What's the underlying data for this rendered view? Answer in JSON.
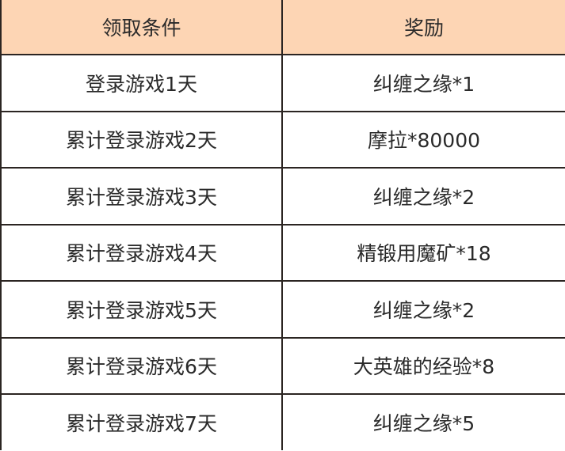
{
  "table": {
    "headers": [
      "领取条件",
      "奖励"
    ],
    "rows": [
      [
        "登录游戏1天",
        "纠缠之缘*1"
      ],
      [
        "累计登录游戏2天",
        "摩拉*80000"
      ],
      [
        "累计登录游戏3天",
        "纠缠之缘*2"
      ],
      [
        "累计登录游戏4天",
        "精锻用魔矿*18"
      ],
      [
        "累计登录游戏5天",
        "纠缠之缘*2"
      ],
      [
        "累计登录游戏6天",
        "大英雄的经验*8"
      ],
      [
        "累计登录游戏7天",
        "纠缠之缘*5"
      ]
    ]
  },
  "colors": {
    "header_bg": "#fdd5b4",
    "border": "#2b2522"
  }
}
